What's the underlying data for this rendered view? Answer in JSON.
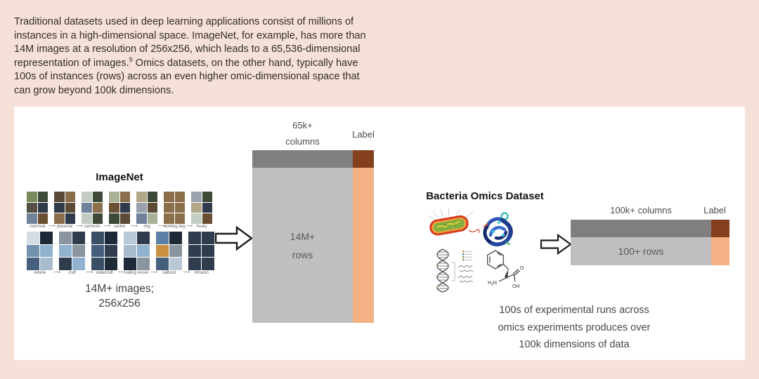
{
  "intro": {
    "text_before": "Traditional datasets used in deep learning applications consist of millions of instances in a high-dimensional space. ImageNet, for example, has more than 14M images at a resolution of 256x256, which leads to a 65,536-dimensional representation of images.",
    "footnote": "9",
    "text_after": " Omics datasets, on the other hand, typically have 100s of instances (rows) across an even higher omic-dimensional space that can grow beyond 100k dimensions."
  },
  "imagenet": {
    "title": "ImageNet",
    "caption_line1": "14M+ images;",
    "caption_line2": "256x256",
    "concept_arrow_glyph": "⟶",
    "concept_rows": [
      [
        "mammal",
        "placental",
        "carnivore",
        "canine",
        "dog",
        "working dog",
        "husky"
      ],
      [
        "vehicle",
        "craft",
        "watercraft",
        "sailing vessel",
        "sailboat",
        "trimaran"
      ]
    ],
    "matrix": {
      "columns_label_line1": "65k+",
      "columns_label_line2": "columns",
      "label_header": "Label",
      "rows_label_line1": "14M+",
      "rows_label_line2": "rows"
    }
  },
  "omics": {
    "title": "Bacteria Omics Dataset",
    "matrix": {
      "columns_label": "100k+ columns",
      "label_header": "Label",
      "rows_label": "100+ rows"
    },
    "caption_line1": "100s of experimental runs across",
    "caption_line2": "omics experiments produces over",
    "caption_line3": "100k dimensions of data",
    "molecule_labels": {
      "amine_main": "H",
      "amine_sub": "2",
      "amine_tail": "N",
      "carbonyl": "O",
      "hydroxyl": "OH"
    }
  },
  "colors": {
    "page_background": "#f5e1d8",
    "panel_background": "#ffffff",
    "matrix_header_gray": "#7f7f7f",
    "matrix_body_gray": "#bfbfbf",
    "label_header_brown": "#843f1e",
    "label_column_orange": "#f4b183",
    "diagram_text_gray": "#595959",
    "body_text": "#322e2a"
  },
  "palettes": {
    "animals": [
      "#7a8b5e",
      "#8a6f4a",
      "#545046",
      "#a7b195",
      "#70829b",
      "#5a4a36",
      "#9aa3ab",
      "#3e4937",
      "#b3a78a",
      "#2f3a4a",
      "#c3cdc4",
      "#6b4f33"
    ],
    "vehicles": [
      "#5d80a8",
      "#90b2cf",
      "#3a4e66",
      "#a8bccd",
      "#d3dbe3",
      "#2e3c4e",
      "#7492ad",
      "#bac9d7",
      "#455f7c",
      "#8b959f",
      "#c9913f",
      "#1f2a38"
    ]
  }
}
